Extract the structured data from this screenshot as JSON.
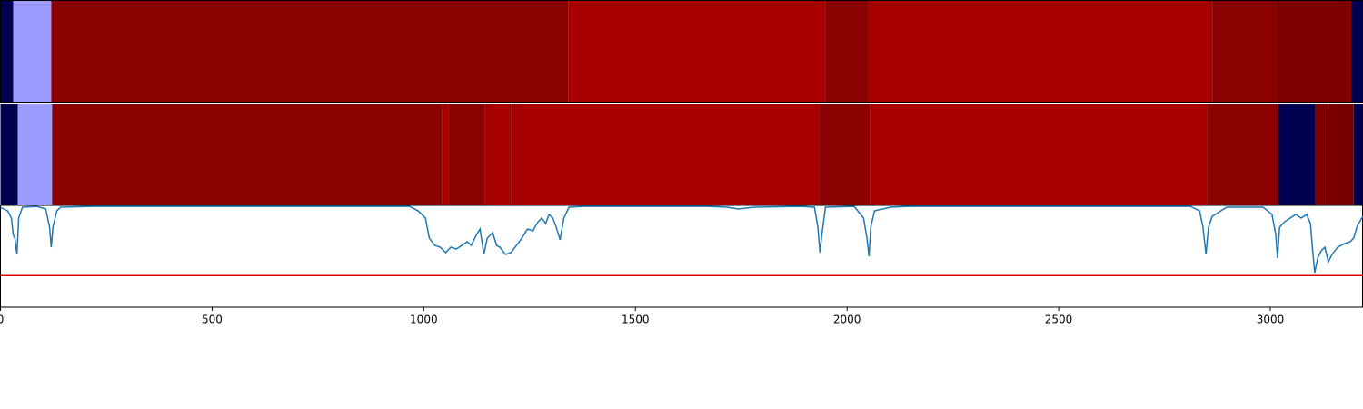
{
  "chart_data": {
    "type": "line",
    "xlim": [
      0,
      3219
    ],
    "ylim": [
      0,
      1
    ],
    "xticks": [
      0,
      500,
      1000,
      1500,
      2000,
      2500,
      3000
    ],
    "strips": [
      {
        "segments": [
          {
            "x0": 0,
            "x1": 30,
            "color": "#000050"
          },
          {
            "x0": 30,
            "x1": 120,
            "color": "#9c9cff"
          },
          {
            "x0": 120,
            "x1": 1341,
            "color": "#8b0000"
          },
          {
            "x0": 1341,
            "x1": 1949,
            "color": "#a60000"
          },
          {
            "x0": 1949,
            "x1": 2050,
            "color": "#8b0000"
          },
          {
            "x0": 2050,
            "x1": 2863,
            "color": "#a60000"
          },
          {
            "x0": 2863,
            "x1": 3013,
            "color": "#8b0000"
          },
          {
            "x0": 3013,
            "x1": 3191,
            "color": "#800000"
          },
          {
            "x0": 3191,
            "x1": 3219,
            "color": "#000050"
          }
        ]
      },
      {
        "segments": [
          {
            "x0": 0,
            "x1": 41,
            "color": "#000050"
          },
          {
            "x0": 41,
            "x1": 122,
            "color": "#9c9cff"
          },
          {
            "x0": 122,
            "x1": 1043,
            "color": "#8b0000"
          },
          {
            "x0": 1043,
            "x1": 1058,
            "color": "#a60000"
          },
          {
            "x0": 1058,
            "x1": 1144,
            "color": "#8b0000"
          },
          {
            "x0": 1144,
            "x1": 1202,
            "color": "#a60000"
          },
          {
            "x0": 1202,
            "x1": 1206,
            "color": "#8b0000"
          },
          {
            "x0": 1206,
            "x1": 1934,
            "color": "#a60000"
          },
          {
            "x0": 1934,
            "x1": 2054,
            "color": "#8b0000"
          },
          {
            "x0": 2054,
            "x1": 2850,
            "color": "#a60000"
          },
          {
            "x0": 2850,
            "x1": 3019,
            "color": "#8b0000"
          },
          {
            "x0": 3019,
            "x1": 3107,
            "color": "#000050"
          },
          {
            "x0": 3107,
            "x1": 3137,
            "color": "#800000"
          },
          {
            "x0": 3137,
            "x1": 3197,
            "color": "#7a0000"
          },
          {
            "x0": 3197,
            "x1": 3219,
            "color": "#000050"
          }
        ]
      }
    ],
    "threshold": 0.31,
    "threshold_color": "#e00000",
    "series": [
      {
        "color": "#1f77b4",
        "x": [
          0,
          17,
          26,
          30,
          34,
          39,
          43,
          52,
          86,
          107,
          116,
          120,
          124,
          133,
          142,
          215,
          966,
          987,
          1004,
          1013,
          1026,
          1039,
          1052,
          1064,
          1077,
          1090,
          1103,
          1112,
          1125,
          1133,
          1142,
          1150,
          1163,
          1172,
          1180,
          1193,
          1206,
          1219,
          1232,
          1245,
          1258,
          1270,
          1279,
          1288,
          1296,
          1305,
          1313,
          1322,
          1331,
          1343,
          1373,
          1674,
          1717,
          1743,
          1781,
          1888,
          1923,
          1931,
          1936,
          1940,
          1949,
          2017,
          2039,
          2047,
          2052,
          2056,
          2065,
          2103,
          2146,
          2811,
          2833,
          2841,
          2848,
          2854,
          2863,
          2897,
          2983,
          3004,
          3013,
          3017,
          3022,
          3034,
          3047,
          3060,
          3073,
          3086,
          3095,
          3099,
          3105,
          3112,
          3120,
          3129,
          3137,
          3146,
          3159,
          3176,
          3189,
          3197,
          3206,
          3219
        ],
        "values": [
          0.98,
          0.946,
          0.875,
          0.714,
          0.679,
          0.518,
          0.875,
          0.982,
          0.99,
          0.964,
          0.786,
          0.589,
          0.786,
          0.946,
          0.982,
          0.99,
          0.99,
          0.946,
          0.875,
          0.679,
          0.607,
          0.589,
          0.536,
          0.589,
          0.571,
          0.607,
          0.643,
          0.607,
          0.714,
          0.768,
          0.518,
          0.679,
          0.732,
          0.607,
          0.589,
          0.518,
          0.536,
          0.607,
          0.679,
          0.768,
          0.75,
          0.839,
          0.875,
          0.821,
          0.911,
          0.875,
          0.786,
          0.661,
          0.875,
          0.982,
          0.99,
          0.99,
          0.982,
          0.964,
          0.982,
          0.99,
          0.982,
          0.786,
          0.536,
          0.696,
          0.982,
          0.99,
          0.875,
          0.679,
          0.5,
          0.786,
          0.946,
          0.982,
          0.99,
          0.99,
          0.946,
          0.786,
          0.518,
          0.786,
          0.893,
          0.982,
          0.982,
          0.911,
          0.714,
          0.482,
          0.786,
          0.839,
          0.875,
          0.911,
          0.875,
          0.911,
          0.821,
          0.607,
          0.339,
          0.482,
          0.554,
          0.589,
          0.446,
          0.518,
          0.589,
          0.625,
          0.643,
          0.679,
          0.804,
          0.893
        ]
      }
    ]
  }
}
